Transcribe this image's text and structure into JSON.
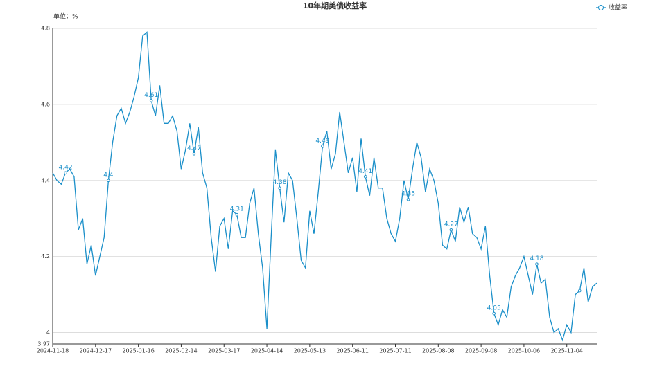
{
  "chart_data": {
    "type": "line",
    "title": "10年期美债收益率",
    "y_axis_name": "单位：%",
    "categories": [
      "2024-11-18",
      null,
      null,
      null,
      null,
      null,
      null,
      null,
      null,
      null,
      "2024-12-17",
      null,
      null,
      null,
      null,
      null,
      null,
      null,
      null,
      null,
      "2025-01-16",
      null,
      null,
      null,
      null,
      null,
      null,
      null,
      null,
      null,
      "2025-02-14",
      null,
      null,
      null,
      null,
      null,
      null,
      null,
      null,
      null,
      "2025-03-17",
      null,
      null,
      null,
      null,
      null,
      null,
      null,
      null,
      null,
      "2025-04-14",
      null,
      null,
      null,
      null,
      null,
      null,
      null,
      null,
      null,
      "2025-05-13",
      null,
      null,
      null,
      null,
      null,
      null,
      null,
      null,
      null,
      "2025-06-11",
      null,
      null,
      null,
      null,
      null,
      null,
      null,
      null,
      null,
      "2025-07-11",
      null,
      null,
      null,
      null,
      null,
      null,
      null,
      null,
      null,
      "2025-08-08",
      null,
      null,
      null,
      null,
      null,
      null,
      null,
      null,
      null,
      "2025-09-08",
      null,
      null,
      null,
      null,
      null,
      null,
      null,
      null,
      null,
      "2025-10-06",
      null,
      null,
      null,
      null,
      null,
      null,
      null,
      null,
      null,
      "2025-11-04",
      null,
      null,
      null,
      null,
      null,
      null,
      null
    ],
    "series": [
      {
        "name": "收益率",
        "color": "#1a8fc9",
        "values": [
          4.42,
          4.4,
          4.39,
          4.42,
          4.43,
          4.41,
          4.27,
          4.3,
          4.18,
          4.23,
          4.15,
          4.2,
          4.25,
          4.4,
          4.5,
          4.57,
          4.59,
          4.55,
          4.58,
          4.62,
          4.67,
          4.78,
          4.79,
          4.61,
          4.57,
          4.65,
          4.55,
          4.55,
          4.57,
          4.53,
          4.43,
          4.48,
          4.55,
          4.47,
          4.54,
          4.42,
          4.38,
          4.25,
          4.16,
          4.28,
          4.3,
          4.22,
          4.32,
          4.31,
          4.25,
          4.25,
          4.34,
          4.38,
          4.26,
          4.17,
          4.01,
          4.25,
          4.48,
          4.38,
          4.29,
          4.42,
          4.4,
          4.3,
          4.19,
          4.17,
          4.32,
          4.26,
          4.37,
          4.49,
          4.53,
          4.43,
          4.47,
          4.58,
          4.5,
          4.42,
          4.46,
          4.37,
          4.51,
          4.41,
          4.36,
          4.46,
          4.38,
          4.38,
          4.3,
          4.26,
          4.24,
          4.3,
          4.4,
          4.35,
          4.43,
          4.5,
          4.46,
          4.37,
          4.43,
          4.4,
          4.34,
          4.23,
          4.22,
          4.27,
          4.24,
          4.33,
          4.29,
          4.33,
          4.26,
          4.25,
          4.22,
          4.28,
          4.15,
          4.05,
          4.02,
          4.06,
          4.04,
          4.12,
          4.15,
          4.17,
          4.2,
          4.15,
          4.1,
          4.18,
          4.13,
          4.14,
          4.04,
          4.0,
          4.01,
          3.98,
          4.02,
          4.0,
          4.1,
          4.11,
          4.17,
          4.08,
          4.12,
          4.13
        ]
      }
    ],
    "ylim": [
      3.97,
      4.8
    ],
    "yticks": [
      3.97,
      4,
      4.2,
      4.4,
      4.6,
      4.8
    ],
    "grid": true,
    "legend": "top-right"
  }
}
